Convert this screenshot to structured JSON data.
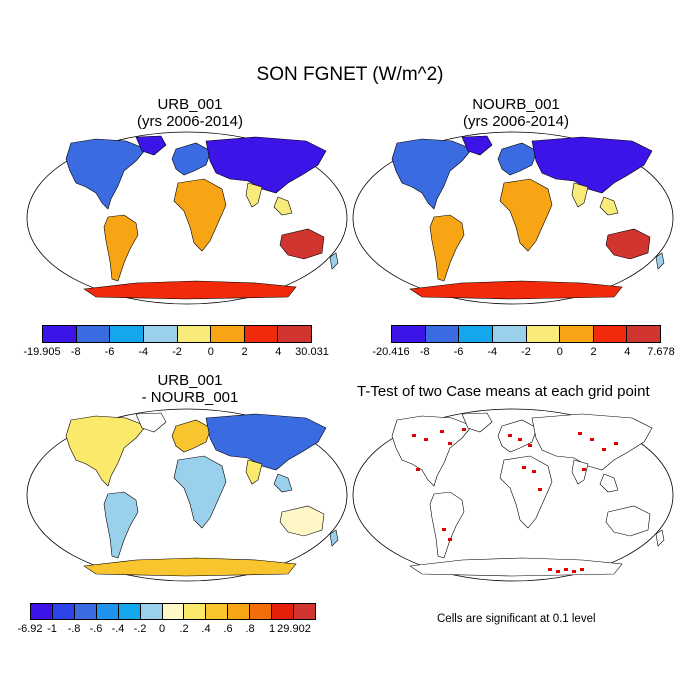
{
  "title": "SON FGNET (W/m^2)",
  "panels": {
    "urb": {
      "title_line1": "URB_001",
      "title_line2": "(yrs 2006-2014)"
    },
    "nourb": {
      "title_line1": "NOURB_001",
      "title_line2": "(yrs 2006-2014)"
    },
    "diff": {
      "title_line1": "URB_001",
      "title_line2": "- NOURB_001"
    },
    "ttest": {
      "title": "T-Test of two Case means at each grid point",
      "footnote": "Cells are significant at 0.1 level"
    }
  },
  "colorbars": {
    "urb": {
      "colors": [
        "#3d14e8",
        "#3a6be0",
        "#15a7ec",
        "#9bd0ec",
        "#f9eb79",
        "#f8a515",
        "#f02a0a",
        "#d13530"
      ],
      "labels": [
        "-19.905",
        "-8",
        "-6",
        "-4",
        "-2",
        "0",
        "2",
        "4",
        "30.031"
      ]
    },
    "nourb": {
      "colors": [
        "#3d14e8",
        "#3a6be0",
        "#15a7ec",
        "#9bd0ec",
        "#f9eb79",
        "#f8a515",
        "#f02a0a",
        "#d13530"
      ],
      "labels": [
        "-20.416",
        "-8",
        "-6",
        "-4",
        "-2",
        "0",
        "2",
        "4",
        "7.678"
      ]
    },
    "diff": {
      "colors": [
        "#3d14e8",
        "#2f43ea",
        "#3a6be0",
        "#1f93ee",
        "#15a7ec",
        "#9bd0ec",
        "#fff7c5",
        "#fbe96c",
        "#f9c52e",
        "#f8a515",
        "#f36d0a",
        "#e5200a",
        "#d13530"
      ],
      "labels": [
        "-6.92",
        "-1",
        "-.8",
        "-.6",
        "-.4",
        "-.2",
        "0",
        ".2",
        ".4",
        ".6",
        ".8",
        "1",
        "29.902"
      ]
    }
  }
}
